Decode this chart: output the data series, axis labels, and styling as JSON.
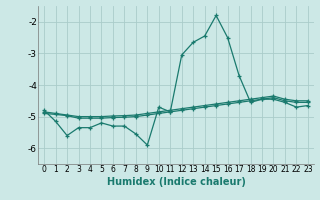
{
  "xlabel": "Humidex (Indice chaleur)",
  "background_color": "#cce8e6",
  "grid_color": "#aaccca",
  "line_color": "#1a7a6e",
  "x_values": [
    0,
    1,
    2,
    3,
    4,
    5,
    6,
    7,
    8,
    9,
    10,
    11,
    12,
    13,
    14,
    15,
    16,
    17,
    18,
    19,
    20,
    21,
    22,
    23
  ],
  "y_line1": [
    -4.8,
    -5.15,
    -5.6,
    -5.35,
    -5.35,
    -5.2,
    -5.3,
    -5.3,
    -5.55,
    -5.9,
    -4.7,
    -4.85,
    -3.05,
    -2.65,
    -2.45,
    -1.8,
    -2.5,
    -3.7,
    -4.55,
    -4.45,
    -4.45,
    -4.55,
    -4.7,
    -4.65
  ],
  "y_line2": [
    -4.85,
    -4.9,
    -4.95,
    -5.0,
    -5.0,
    -5.0,
    -4.98,
    -4.97,
    -4.95,
    -4.9,
    -4.85,
    -4.8,
    -4.75,
    -4.7,
    -4.65,
    -4.6,
    -4.55,
    -4.5,
    -4.45,
    -4.4,
    -4.35,
    -4.45,
    -4.5,
    -4.5
  ],
  "y_line3": [
    -4.9,
    -4.93,
    -4.97,
    -5.05,
    -5.05,
    -5.05,
    -5.03,
    -5.02,
    -5.0,
    -4.95,
    -4.9,
    -4.85,
    -4.8,
    -4.75,
    -4.7,
    -4.65,
    -4.6,
    -4.55,
    -4.5,
    -4.45,
    -4.4,
    -4.5,
    -4.55,
    -4.55
  ],
  "ylim": [
    -6.5,
    -1.5
  ],
  "xlim": [
    -0.5,
    23.5
  ],
  "yticks": [
    -6,
    -5,
    -4,
    -3,
    -2
  ],
  "xticks": [
    0,
    1,
    2,
    3,
    4,
    5,
    6,
    7,
    8,
    9,
    10,
    11,
    12,
    13,
    14,
    15,
    16,
    17,
    18,
    19,
    20,
    21,
    22,
    23
  ],
  "xlabel_fontsize": 7,
  "tick_fontsize": 5.5,
  "ytick_fontsize": 6.5
}
